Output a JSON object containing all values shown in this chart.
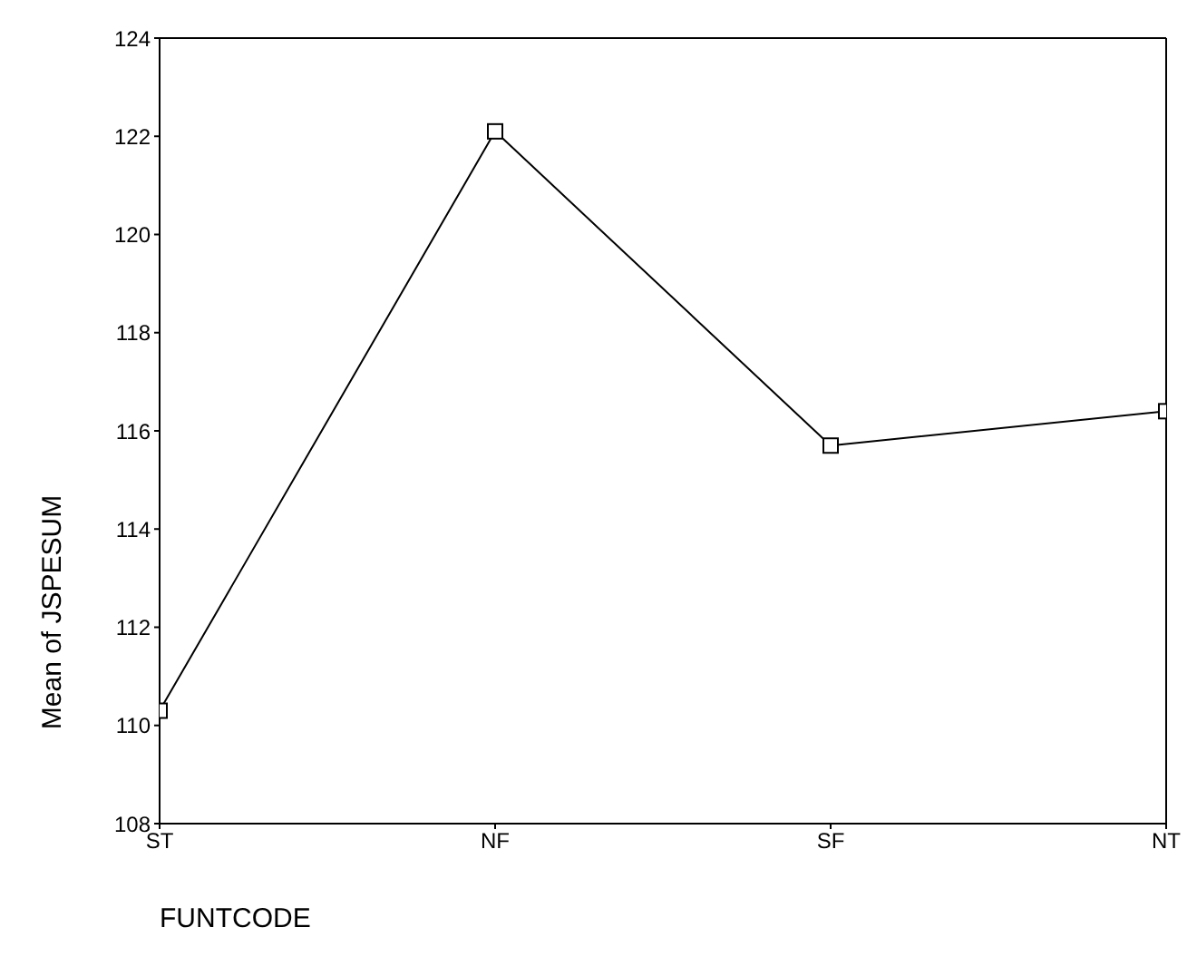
{
  "chart_data": {
    "type": "line",
    "xlabel": "FUNTCODE",
    "ylabel": "Mean of JSPESUM",
    "categories": [
      "ST",
      "NF",
      "SF",
      "NT"
    ],
    "series": [
      {
        "color": "#000000",
        "values": [
          110.3,
          122.1,
          115.7,
          116.4
        ]
      }
    ],
    "ylim": [
      108,
      124
    ],
    "yticks": [
      108,
      110,
      112,
      114,
      116,
      118,
      120,
      122,
      124
    ],
    "marker": "square",
    "line_style": "solid"
  }
}
